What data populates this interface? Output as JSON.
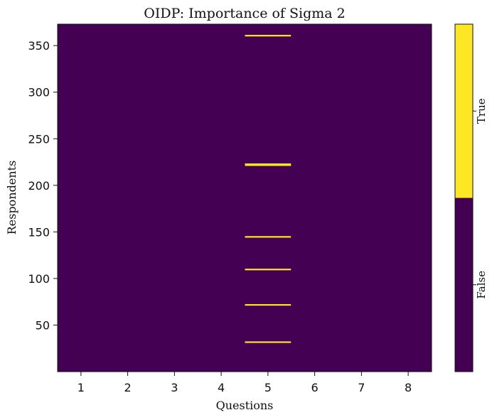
{
  "chart_data": {
    "type": "heatmap",
    "title": "OIDP: Importance of Sigma 2",
    "xlabel": "Questions",
    "ylabel": "Respondents",
    "x_categories": [
      "1",
      "2",
      "3",
      "4",
      "5",
      "6",
      "7",
      "8"
    ],
    "y_ticks": [
      50,
      100,
      150,
      200,
      250,
      300,
      350
    ],
    "ylim": [
      0,
      373
    ],
    "colormap": {
      "False": "#440154",
      "True": "#fde725"
    },
    "true_cells": [
      {
        "question": 5,
        "respondent": 32
      },
      {
        "question": 5,
        "respondent": 72
      },
      {
        "question": 5,
        "respondent": 110
      },
      {
        "question": 5,
        "respondent": 145
      },
      {
        "question": 5,
        "respondent": 222
      },
      {
        "question": 5,
        "respondent": 223
      },
      {
        "question": 5,
        "respondent": 361
      }
    ],
    "default_value": "False",
    "colorbar": {
      "labels": [
        "False",
        "True"
      ]
    },
    "grid": false
  }
}
